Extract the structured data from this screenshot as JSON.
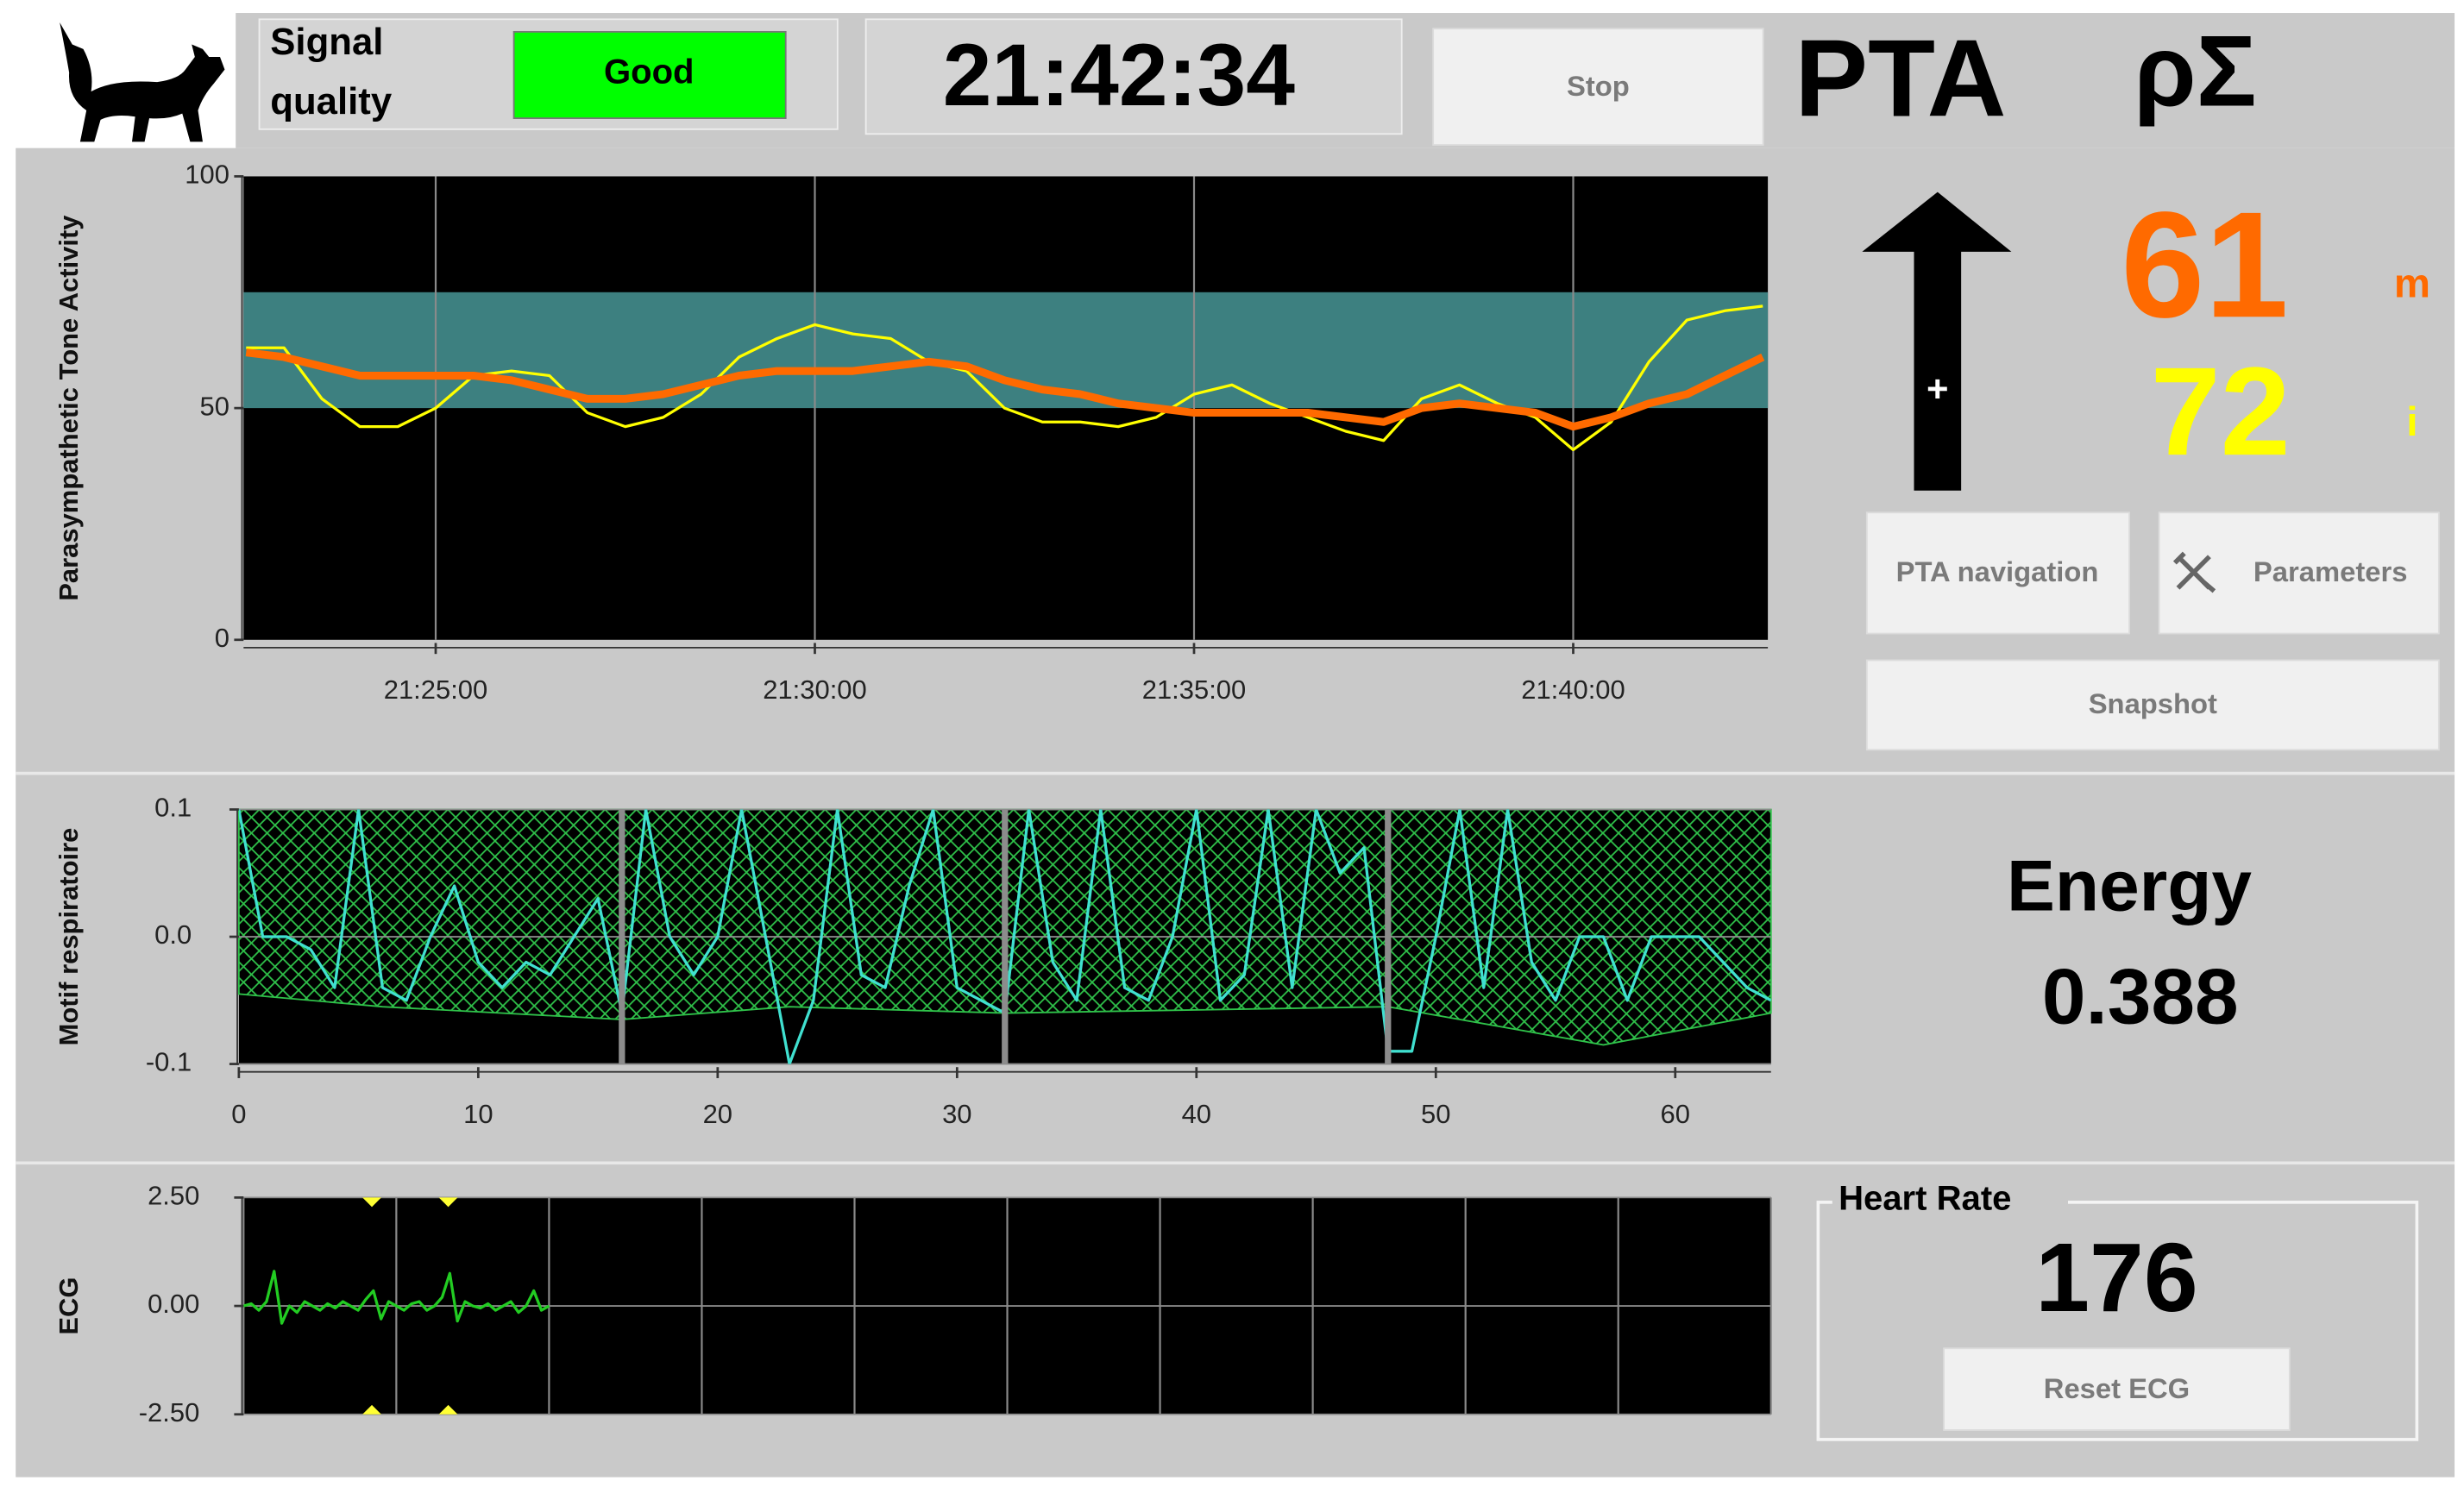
{
  "header": {
    "signal_label": [
      "Signal",
      "quality"
    ],
    "signal_status": "Good",
    "clock": "21:42:34",
    "stop_button": "Stop",
    "title": "PTA",
    "symbol": "ρΣ"
  },
  "pta": {
    "arrow_sign": "+",
    "m_value": 61,
    "m_label": "m",
    "i_value": 72,
    "i_label": "i"
  },
  "buttons": [
    "PTA navigation",
    "Parameters",
    "Snapshot"
  ],
  "energy": {
    "label": "Energy",
    "value": 0.388
  },
  "heart_rate": {
    "label": "Heart Rate",
    "value": 176,
    "button": "Reset ECG"
  },
  "chart_data": [
    {
      "type": "line",
      "y_label": "Parasympathetic Tone Activity",
      "xlim": [
        "21:22:28",
        "21:42:34"
      ],
      "xticks": [
        "21:25:00",
        "21:30:00",
        "21:35:00",
        "21:40:00"
      ],
      "ylim": [
        0,
        100
      ],
      "yticks": [
        0,
        50,
        100
      ],
      "grid": "x",
      "band": [
        50,
        75
      ],
      "band_color": "#3d8080",
      "x": [
        "21:22:30",
        "21:23:00",
        "21:23:30",
        "21:24:00",
        "21:24:30",
        "21:25:00",
        "21:25:30",
        "21:26:00",
        "21:26:30",
        "21:27:00",
        "21:27:30",
        "21:28:00",
        "21:28:30",
        "21:29:00",
        "21:29:30",
        "21:30:00",
        "21:30:30",
        "21:31:00",
        "21:31:30",
        "21:32:00",
        "21:32:30",
        "21:33:00",
        "21:33:30",
        "21:34:00",
        "21:34:30",
        "21:35:00",
        "21:35:30",
        "21:36:00",
        "21:36:30",
        "21:37:00",
        "21:37:30",
        "21:38:00",
        "21:38:30",
        "21:39:00",
        "21:39:30",
        "21:40:00",
        "21:40:30",
        "21:41:00",
        "21:41:30",
        "21:42:00",
        "21:42:30"
      ],
      "series": [
        {
          "color": "#ffff00",
          "values": [
            63,
            63,
            52,
            46,
            46,
            50,
            57,
            58,
            57,
            49,
            46,
            48,
            53,
            61,
            65,
            68,
            66,
            65,
            60,
            58,
            50,
            47,
            47,
            46,
            48,
            53,
            55,
            51,
            48,
            45,
            43,
            52,
            55,
            51,
            48,
            41,
            47,
            60,
            69,
            71,
            72
          ]
        },
        {
          "color": "#ff6a00",
          "values": [
            62,
            61,
            59,
            57,
            57,
            57,
            57,
            56,
            54,
            52,
            52,
            53,
            55,
            57,
            58,
            58,
            58,
            59,
            60,
            59,
            56,
            54,
            53,
            51,
            50,
            49,
            49,
            49,
            49,
            48,
            47,
            50,
            51,
            50,
            49,
            46,
            48,
            51,
            53,
            57,
            61
          ]
        }
      ]
    },
    {
      "type": "line",
      "y_label": "Motif respiratoire",
      "xlim": [
        0,
        64
      ],
      "xticks": [
        0,
        10,
        20,
        30,
        40,
        50,
        60
      ],
      "ylim": [
        -0.1,
        0.1
      ],
      "yticks": [
        0.1,
        {
          "value": 0,
          "label": "0.0"
        },
        -0.1
      ],
      "grid": "y",
      "dividers": [
        16,
        32,
        48
      ],
      "envelope": {
        "x": [
          0,
          6,
          16,
          23,
          32,
          48,
          57,
          64
        ],
        "upper": [
          0.1,
          0.1,
          0.1,
          0.1,
          0.1,
          0.1,
          0.1,
          0.1
        ],
        "lower": [
          -0.045,
          -0.055,
          -0.065,
          -0.055,
          -0.06,
          -0.055,
          -0.085,
          -0.06
        ]
      },
      "x": [
        0,
        1,
        2,
        3,
        4,
        5,
        6,
        7,
        8,
        9,
        10,
        11,
        12,
        13,
        14,
        15,
        16,
        17,
        18,
        19,
        20,
        21,
        22,
        23,
        24,
        25,
        26,
        27,
        28,
        29,
        30,
        31,
        32,
        33,
        34,
        35,
        36,
        37,
        38,
        39,
        40,
        41,
        42,
        43,
        44,
        45,
        46,
        47,
        48,
        49,
        50,
        51,
        52,
        53,
        54,
        55,
        56,
        57,
        58,
        59,
        60,
        61,
        62,
        63,
        64
      ],
      "series": [
        {
          "color": "#40e0d0",
          "values": [
            0.1,
            0,
            0,
            -0.01,
            -0.04,
            0.1,
            -0.04,
            -0.05,
            0,
            0.04,
            -0.02,
            -0.04,
            -0.02,
            -0.03,
            0,
            0.03,
            -0.06,
            0.1,
            0,
            -0.03,
            0,
            0.1,
            0,
            -0.1,
            -0.05,
            0.1,
            -0.03,
            -0.04,
            0.04,
            0.1,
            -0.04,
            -0.05,
            -0.06,
            0.1,
            -0.02,
            -0.05,
            0.1,
            -0.04,
            -0.05,
            0,
            0.1,
            -0.05,
            -0.03,
            0.1,
            -0.04,
            0.1,
            0.05,
            0.07,
            -0.09,
            -0.09,
            0,
            0.1,
            -0.04,
            0.1,
            -0.02,
            -0.05,
            0,
            0,
            -0.05,
            0,
            0,
            0,
            -0.02,
            -0.04,
            -0.05
          ]
        }
      ]
    },
    {
      "type": "line",
      "y_label": "ECG",
      "xlim": [
        0,
        100
      ],
      "xticks": [
        0,
        10,
        20,
        30,
        40,
        50,
        60,
        70,
        80,
        90,
        100
      ],
      "show_xtick_labels": false,
      "ylim": [
        -2.5,
        2.5
      ],
      "yticks": [
        {
          "value": 2.5,
          "label": "2.50"
        },
        {
          "value": 0,
          "label": "0.00"
        },
        {
          "value": -2.5,
          "label": "-2.50"
        }
      ],
      "grid": "both",
      "markers": [
        8.4,
        13.4
      ],
      "marker_color": "#ffff33",
      "x": [
        0,
        0.5,
        1,
        1.5,
        2,
        2.5,
        3,
        3.5,
        4,
        4.5,
        5,
        5.5,
        6,
        6.5,
        7,
        7.5,
        8,
        8.5,
        9,
        9.5,
        10,
        10.5,
        11,
        11.5,
        12,
        12.5,
        13,
        13.5,
        14,
        14.5,
        15,
        15.5,
        16,
        16.5,
        17,
        17.5,
        18,
        18.5,
        19,
        19.5,
        20
      ],
      "series": [
        {
          "color": "#22cc22",
          "values": [
            0,
            0.05,
            -0.1,
            0.1,
            0.8,
            -0.4,
            0,
            -0.15,
            0.1,
            0,
            -0.1,
            0.05,
            -0.05,
            0.1,
            0,
            -0.1,
            0.15,
            0.35,
            -0.3,
            0.1,
            0,
            -0.1,
            0.05,
            0.1,
            -0.1,
            0,
            0.2,
            0.75,
            -0.35,
            0.1,
            0,
            -0.05,
            0.05,
            -0.1,
            0,
            0.1,
            -0.15,
            0,
            0.35,
            -0.1,
            0
          ]
        }
      ]
    }
  ]
}
